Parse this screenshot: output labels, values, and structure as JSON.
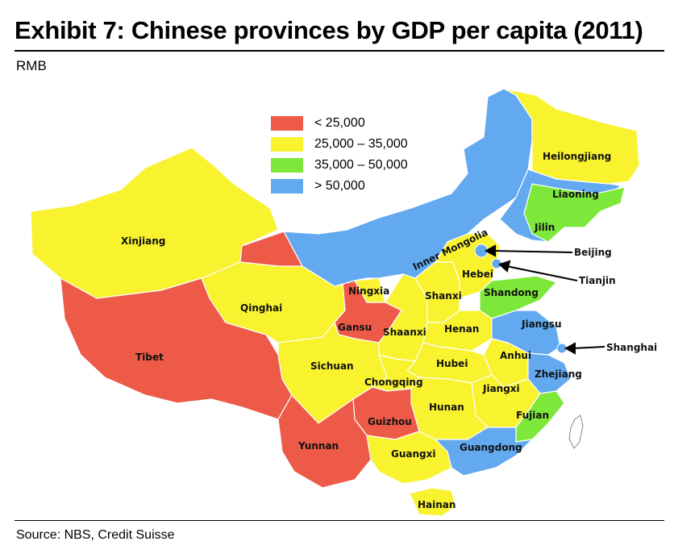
{
  "title": "Exhibit 7: Chinese provinces by GDP per capita (2011)",
  "subtitle": "RMB",
  "source": "Source: NBS, Credit Suisse",
  "legend": [
    {
      "label": "< 25,000",
      "color": "#ee5a48"
    },
    {
      "label": "25,000 – 35,000",
      "color": "#f8f22f"
    },
    {
      "label": "35,000 – 50,000",
      "color": "#7ee83a"
    },
    {
      "label": "> 50,000",
      "color": "#62a9ef"
    }
  ],
  "provinces": [
    {
      "name": "Xinjiang",
      "band": 1
    },
    {
      "name": "Tibet",
      "band": 0
    },
    {
      "name": "Qinghai",
      "band": 1
    },
    {
      "name": "Gansu",
      "band": 0
    },
    {
      "name": "Inner Mongolia",
      "band": 3
    },
    {
      "name": "Heilongjiang",
      "band": 1
    },
    {
      "name": "Jilin",
      "band": 3
    },
    {
      "name": "Liaoning",
      "band": 2
    },
    {
      "name": "Ningxia",
      "band": 1
    },
    {
      "name": "Shaanxi",
      "band": 1
    },
    {
      "name": "Shanxi",
      "band": 1
    },
    {
      "name": "Hebei",
      "band": 1
    },
    {
      "name": "Shandong",
      "band": 2
    },
    {
      "name": "Henan",
      "band": 1
    },
    {
      "name": "Jiangsu",
      "band": 3
    },
    {
      "name": "Anhui",
      "band": 1
    },
    {
      "name": "Hubei",
      "band": 1
    },
    {
      "name": "Sichuan",
      "band": 1
    },
    {
      "name": "Chongqing",
      "band": 1
    },
    {
      "name": "Zhejiang",
      "band": 3
    },
    {
      "name": "Jiangxi",
      "band": 1
    },
    {
      "name": "Hunan",
      "band": 1
    },
    {
      "name": "Guizhou",
      "band": 0
    },
    {
      "name": "Yunnan",
      "band": 0
    },
    {
      "name": "Fujian",
      "band": 2
    },
    {
      "name": "Guangxi",
      "band": 1
    },
    {
      "name": "Guangdong",
      "band": 3
    },
    {
      "name": "Hainan",
      "band": 1
    }
  ],
  "callouts": [
    {
      "name": "Beijing",
      "band": 3
    },
    {
      "name": "Tianjin",
      "band": 3
    },
    {
      "name": "Shanghai",
      "band": 3
    }
  ]
}
